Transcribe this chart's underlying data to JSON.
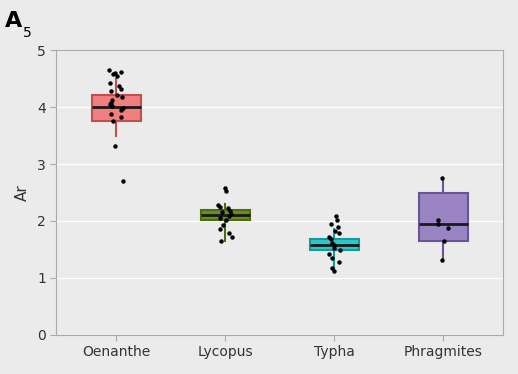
{
  "categories": [
    "Oenanthe",
    "Lycopus",
    "Typha",
    "Phragmites"
  ],
  "box_colors": [
    "#F08080",
    "#6B8E23",
    "#2EC8C8",
    "#9B84C4"
  ],
  "box_edge_colors": [
    "#C05050",
    "#4A6E10",
    "#1A9898",
    "#6B5494"
  ],
  "background_color": "#EBEBEB",
  "plot_bg_color": "#EBEBEB",
  "grid_color": "#FFFFFF",
  "ylabel": "Ar",
  "panel_label": "A",
  "panel_sublabel": "5",
  "ylim": [
    0,
    5
  ],
  "yticks": [
    0,
    1,
    2,
    3,
    4,
    5
  ],
  "boxes": [
    {
      "q1": 3.75,
      "median": 4.0,
      "q3": 4.22,
      "whisker_low": 3.5,
      "whisker_high": 4.5,
      "points": [
        4.55,
        4.58,
        4.6,
        4.62,
        4.65,
        4.42,
        4.38,
        4.32,
        4.28,
        4.22,
        4.18,
        4.12,
        4.08,
        4.05,
        4.02,
        3.98,
        3.95,
        3.88,
        3.82,
        3.75,
        3.32,
        2.7
      ]
    },
    {
      "q1": 2.02,
      "median": 2.1,
      "q3": 2.2,
      "whisker_low": 1.65,
      "whisker_high": 2.3,
      "points": [
        2.58,
        2.52,
        2.28,
        2.25,
        2.22,
        2.18,
        2.15,
        2.12,
        2.08,
        2.05,
        2.02,
        1.92,
        1.85,
        1.78,
        1.72,
        1.65
      ]
    },
    {
      "q1": 1.48,
      "median": 1.58,
      "q3": 1.68,
      "whisker_low": 1.1,
      "whisker_high": 1.85,
      "points": [
        2.08,
        2.02,
        1.95,
        1.9,
        1.82,
        1.78,
        1.72,
        1.68,
        1.62,
        1.58,
        1.52,
        1.48,
        1.42,
        1.35,
        1.28,
        1.18,
        1.12
      ]
    },
    {
      "q1": 1.65,
      "median": 1.95,
      "q3": 2.5,
      "whisker_low": 1.32,
      "whisker_high": 2.75,
      "points": [
        2.75,
        2.02,
        1.95,
        1.88,
        1.65,
        1.32
      ]
    }
  ],
  "box_width": 0.45,
  "axis_fontsize": 11,
  "tick_fontsize": 10
}
